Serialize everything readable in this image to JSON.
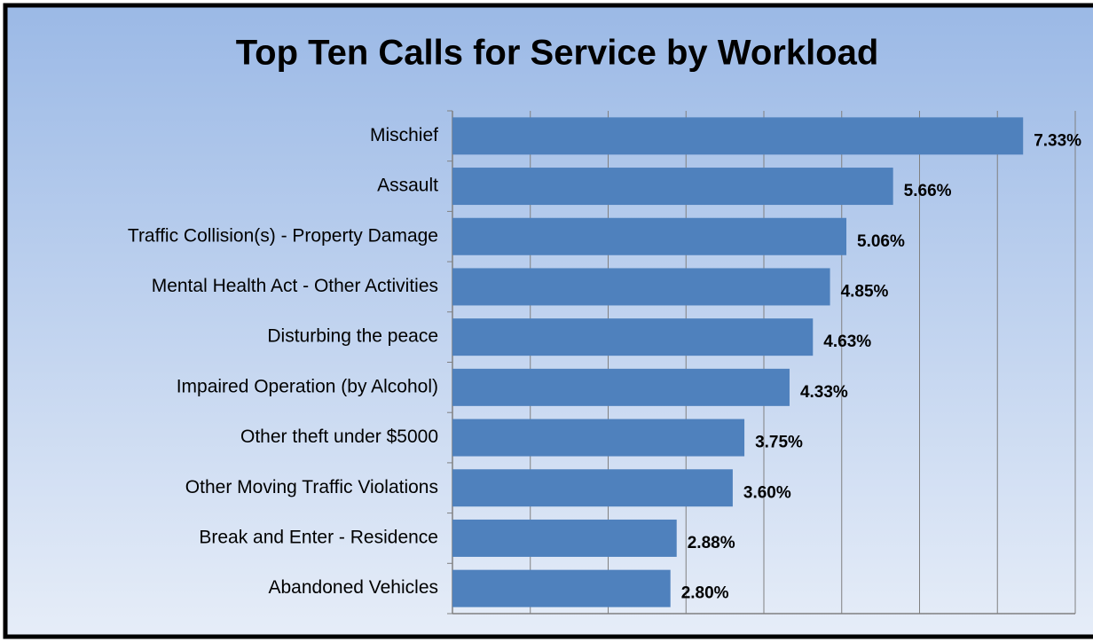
{
  "chart_data": {
    "type": "bar",
    "orientation": "horizontal",
    "title": "Top Ten Calls for Service by Workload",
    "categories": [
      "Mischief",
      "Assault",
      "Traffic Collision(s) - Property Damage",
      "Mental Health Act - Other Activities",
      "Disturbing the peace",
      "Impaired Operation (by Alcohol)",
      "Other theft under $5000",
      "Other Moving Traffic Violations",
      "Break and Enter - Residence",
      "Abandoned Vehicles"
    ],
    "values": [
      7.33,
      5.66,
      5.06,
      4.85,
      4.63,
      4.33,
      3.75,
      3.6,
      2.88,
      2.8
    ],
    "value_labels": [
      "7.33%",
      "5.66%",
      "5.06%",
      "4.85%",
      "4.63%",
      "4.33%",
      "3.75%",
      "3.60%",
      "2.88%",
      "2.80%"
    ],
    "color": "#4f81bd",
    "xlim": [
      0,
      8
    ],
    "xticks": [
      0,
      1,
      2,
      3,
      4,
      5,
      6,
      7,
      8
    ],
    "grid": true
  }
}
